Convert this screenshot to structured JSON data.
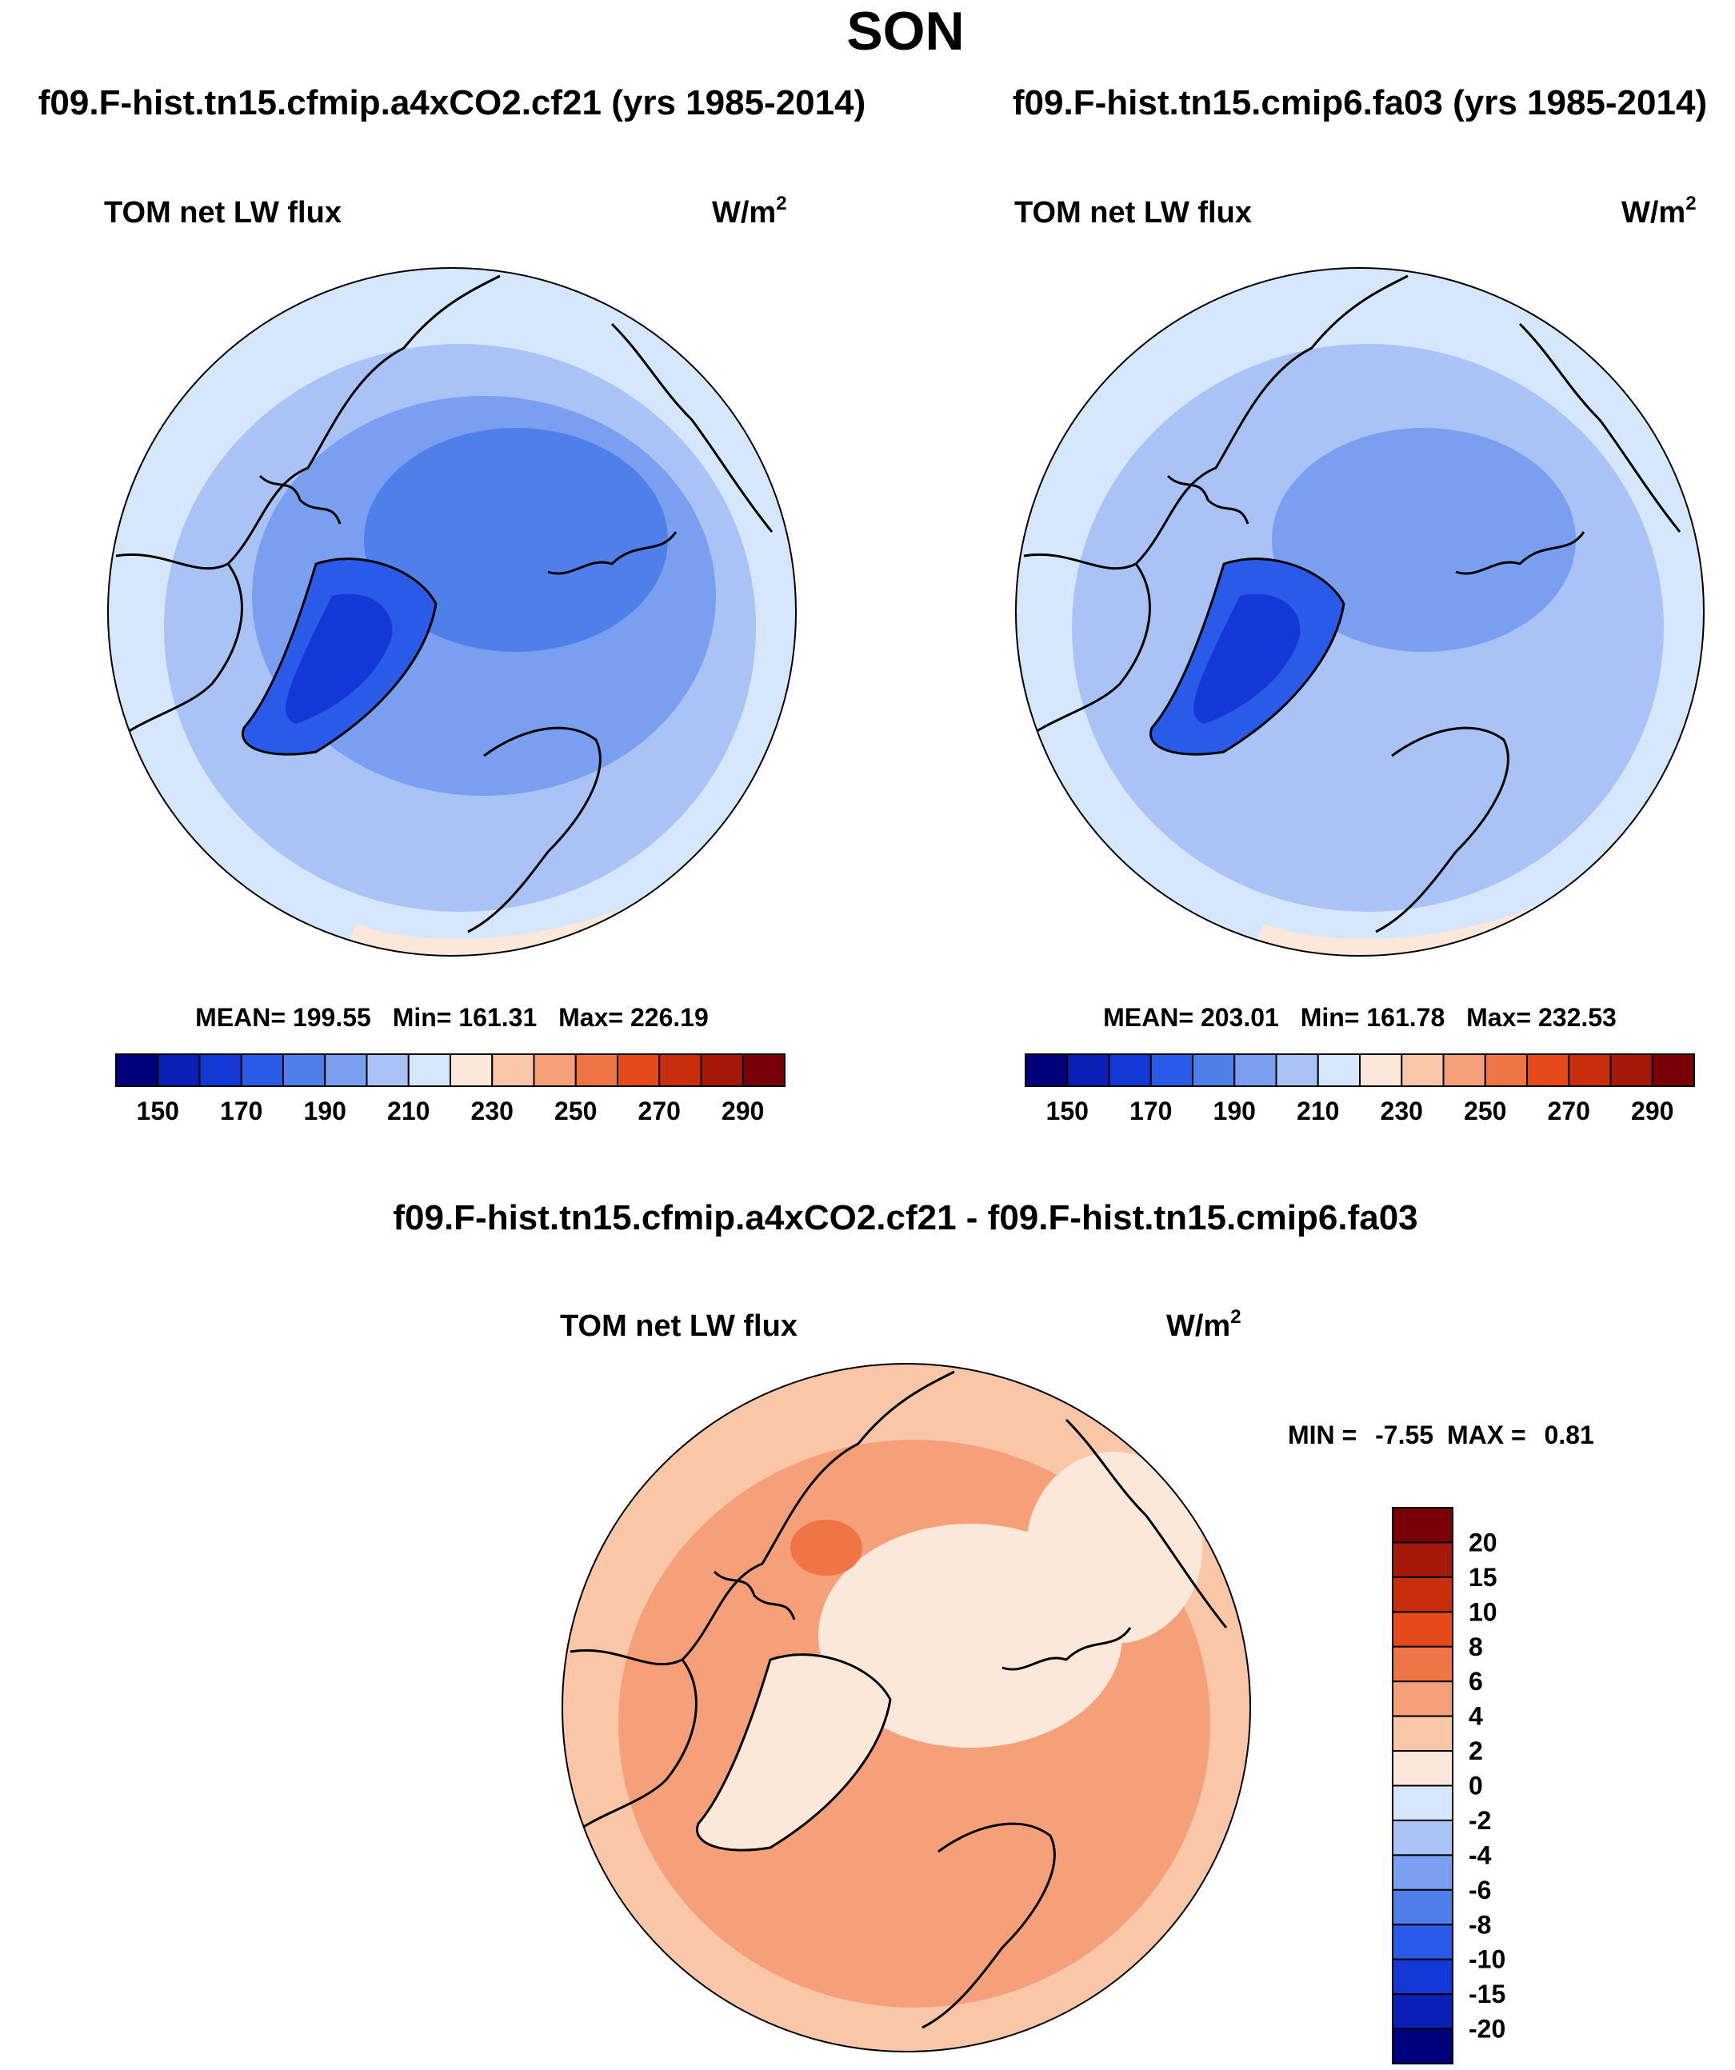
{
  "figure": {
    "season": "SON",
    "colors": {
      "ocean_outline": "#000000",
      "land_outline": "#000000"
    }
  },
  "chart_data": [
    {
      "type": "heatmap",
      "projection": "north-polar-stereographic",
      "title": "f09.F-hist.tn15.cfmip.a4xCO2.cf21 (yrs 1985-2014)",
      "variable": "TOM net LW flux",
      "units_base": "W/m",
      "units_exp": "2",
      "stats": {
        "mean_label": "MEAN=",
        "mean": "199.55",
        "min_label": "Min=",
        "min": "161.31",
        "max_label": "Max=",
        "max": "226.19"
      },
      "levels": [
        140,
        150,
        160,
        170,
        180,
        190,
        200,
        210,
        220,
        230,
        240,
        250,
        260,
        270,
        280,
        290
      ],
      "colorbar_ticks": [
        "150",
        "170",
        "190",
        "210",
        "230",
        "250",
        "270",
        "290"
      ],
      "colorbar_colors": [
        "#00007d",
        "#0a1fb5",
        "#1438d6",
        "#2a5ae8",
        "#4f7fe8",
        "#7a9ff0",
        "#a9c3f6",
        "#d6e6fb",
        "#fce8db",
        "#f9c6a8",
        "#f5a078",
        "#ef7446",
        "#e64a1b",
        "#c92e0c",
        "#a5190a",
        "#7a0007"
      ],
      "regions": [
        {
          "zone": "outer-ring",
          "value": 215
        },
        {
          "zone": "mid-ocean",
          "value": 205
        },
        {
          "zone": "arctic-basin",
          "value": 195
        },
        {
          "zone": "central-arctic",
          "value": 185
        },
        {
          "zone": "greenland",
          "value": 175
        },
        {
          "zone": "greenland-core",
          "value": 165
        },
        {
          "zone": "sub-tropical-edge",
          "value": 225
        }
      ]
    },
    {
      "type": "heatmap",
      "projection": "north-polar-stereographic",
      "title": "f09.F-hist.tn15.cmip6.fa03 (yrs 1985-2014)",
      "variable": "TOM net LW flux",
      "units_base": "W/m",
      "units_exp": "2",
      "stats": {
        "mean_label": "MEAN=",
        "mean": "203.01",
        "min_label": "Min=",
        "min": "161.78",
        "max_label": "Max=",
        "max": "232.53"
      },
      "levels": [
        140,
        150,
        160,
        170,
        180,
        190,
        200,
        210,
        220,
        230,
        240,
        250,
        260,
        270,
        280,
        290
      ],
      "colorbar_ticks": [
        "150",
        "170",
        "190",
        "210",
        "230",
        "250",
        "270",
        "290"
      ],
      "colorbar_colors": [
        "#00007d",
        "#0a1fb5",
        "#1438d6",
        "#2a5ae8",
        "#4f7fe8",
        "#7a9ff0",
        "#a9c3f6",
        "#d6e6fb",
        "#fce8db",
        "#f9c6a8",
        "#f5a078",
        "#ef7446",
        "#e64a1b",
        "#c92e0c",
        "#a5190a",
        "#7a0007"
      ],
      "regions": [
        {
          "zone": "outer-ring",
          "value": 215
        },
        {
          "zone": "mid-ocean",
          "value": 205
        },
        {
          "zone": "arctic-basin",
          "value": 200
        },
        {
          "zone": "central-arctic",
          "value": 195
        },
        {
          "zone": "greenland",
          "value": 175
        },
        {
          "zone": "greenland-core",
          "value": 165
        },
        {
          "zone": "sub-tropical-edge",
          "value": 225
        }
      ]
    },
    {
      "type": "heatmap",
      "projection": "north-polar-stereographic",
      "title": "f09.F-hist.tn15.cfmip.a4xCO2.cf21 - f09.F-hist.tn15.cmip6.fa03",
      "variable": "TOM net LW flux",
      "units_base": "W/m",
      "units_exp": "2",
      "stats": {
        "min_label": "MIN =",
        "min": "-7.55",
        "max_label": "MAX =",
        "max": "0.81"
      },
      "levels": [
        -25,
        -20,
        -15,
        -10,
        -8,
        -6,
        -4,
        -2,
        0,
        2,
        4,
        6,
        8,
        10,
        15,
        20,
        25
      ],
      "colorbar_ticks": [
        "20",
        "15",
        "10",
        "8",
        "6",
        "4",
        "2",
        "0",
        "-2",
        "-4",
        "-6",
        "-8",
        "-10",
        "-15",
        "-20"
      ],
      "colorbar_colors": [
        "#7a0007",
        "#a5190a",
        "#c92e0c",
        "#e64a1b",
        "#ef7446",
        "#f5a078",
        "#f9c6a8",
        "#fce8db",
        "#d6e6fb",
        "#a9c3f6",
        "#7a9ff0",
        "#4f7fe8",
        "#2a5ae8",
        "#1438d6",
        "#0a1fb5",
        "#00007d"
      ],
      "regions": [
        {
          "zone": "outer-ring",
          "value": -3
        },
        {
          "zone": "mid-ocean",
          "value": -5
        },
        {
          "zone": "arctic-basin",
          "value": -5
        },
        {
          "zone": "central-arctic",
          "value": -1
        },
        {
          "zone": "greenland",
          "value": -1
        },
        {
          "zone": "east-pacific",
          "value": -1
        },
        {
          "zone": "kara-sea",
          "value": -7
        }
      ]
    }
  ]
}
